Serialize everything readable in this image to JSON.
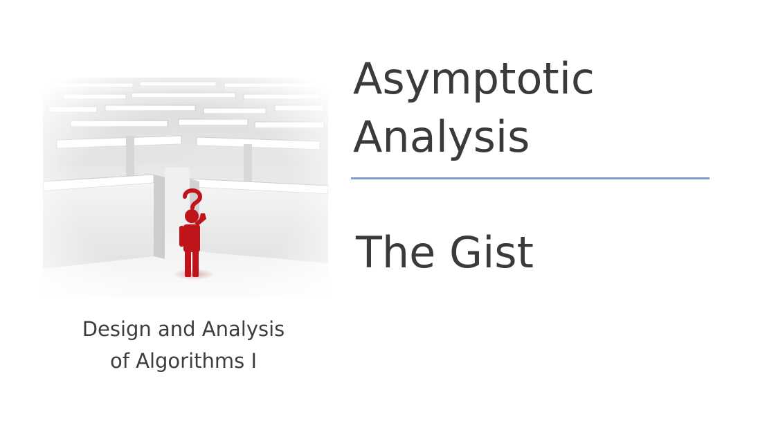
{
  "slide": {
    "title_lines": [
      "Asymptotic",
      "Analysis"
    ],
    "subtitle": "The Gist",
    "course_lines": [
      "Design and Analysis",
      "of Algorithms I"
    ],
    "image": {
      "subject": "maze-with-red-figure-question-mark",
      "figure_color": "#c0141b"
    },
    "colors": {
      "text": "#3a3a3a",
      "rule": "#7f9bc6",
      "background": "#ffffff"
    }
  }
}
